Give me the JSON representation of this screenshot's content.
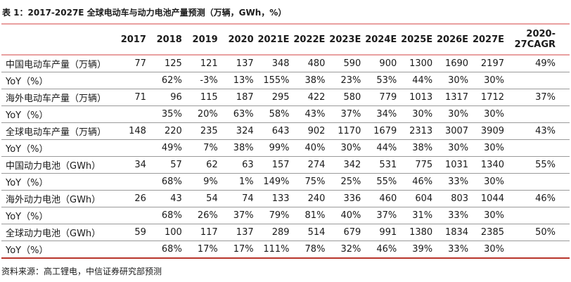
{
  "title": "表 1：2017-2027E 全球电动车与动力电池产量预测（万辆，GWh，%）",
  "source_note": "资料来源：高工锂电，中信证券研究部预测",
  "colors": {
    "accent_line": "#e9a0a0",
    "bottom_line": "#b8352b",
    "row_line": "#9a9a9a",
    "text": "#1a1a1a"
  },
  "chart_data": {
    "type": "table",
    "title": "表 1：2017-2027E 全球电动车与动力电池产量预测（万辆，GWh，%）",
    "columns": [
      "2017",
      "2018",
      "2019",
      "2020",
      "2021E",
      "2022E",
      "2023E",
      "2024E",
      "2025E",
      "2026E",
      "2027E"
    ],
    "cagr_column": {
      "line1": "2020-",
      "line2": "27CAGR",
      "full": "2020-27CAGR"
    },
    "rows": [
      {
        "label": "中国电动车产量（万辆）",
        "values": [
          "77",
          "125",
          "121",
          "137",
          "348",
          "480",
          "590",
          "900",
          "1300",
          "1690",
          "2197",
          "49%"
        ]
      },
      {
        "label": "YoY（%）",
        "values": [
          "",
          "62%",
          "-3%",
          "13%",
          "155%",
          "38%",
          "23%",
          "53%",
          "44%",
          "30%",
          "30%",
          ""
        ]
      },
      {
        "label": "海外电动车产量（万辆）",
        "values": [
          "71",
          "96",
          "115",
          "187",
          "295",
          "422",
          "580",
          "779",
          "1013",
          "1317",
          "1712",
          "37%"
        ]
      },
      {
        "label": "YoY（%）",
        "values": [
          "",
          "35%",
          "20%",
          "63%",
          "58%",
          "43%",
          "37%",
          "34%",
          "30%",
          "30%",
          "30%",
          ""
        ]
      },
      {
        "label": "全球电动车产量（万辆）",
        "values": [
          "148",
          "220",
          "235",
          "324",
          "643",
          "902",
          "1170",
          "1679",
          "2313",
          "3007",
          "3909",
          "43%"
        ]
      },
      {
        "label": "YoY（%）",
        "values": [
          "",
          "49%",
          "7%",
          "38%",
          "99%",
          "40%",
          "30%",
          "44%",
          "38%",
          "30%",
          "30%",
          ""
        ]
      },
      {
        "label": "中国动力电池（GWh）",
        "values": [
          "34",
          "57",
          "62",
          "63",
          "157",
          "274",
          "342",
          "531",
          "775",
          "1031",
          "1340",
          "55%"
        ]
      },
      {
        "label": "YoY（%）",
        "values": [
          "",
          "68%",
          "9%",
          "1%",
          "149%",
          "75%",
          "25%",
          "55%",
          "46%",
          "33%",
          "30%",
          ""
        ]
      },
      {
        "label": "海外动力电池（GWh）",
        "values": [
          "26",
          "43",
          "54",
          "74",
          "133",
          "240",
          "336",
          "460",
          "604",
          "803",
          "1044",
          "46%"
        ]
      },
      {
        "label": "YoY（%）",
        "values": [
          "",
          "68%",
          "26%",
          "37%",
          "79%",
          "81%",
          "40%",
          "37%",
          "31%",
          "33%",
          "30%",
          ""
        ]
      },
      {
        "label": "全球动力电池（GWh）",
        "values": [
          "59",
          "100",
          "117",
          "137",
          "289",
          "514",
          "679",
          "991",
          "1380",
          "1834",
          "2385",
          "50%"
        ]
      },
      {
        "label": "YoY（%）",
        "values": [
          "",
          "68%",
          "17%",
          "17%",
          "111%",
          "78%",
          "32%",
          "46%",
          "39%",
          "33%",
          "30%",
          ""
        ]
      }
    ]
  }
}
